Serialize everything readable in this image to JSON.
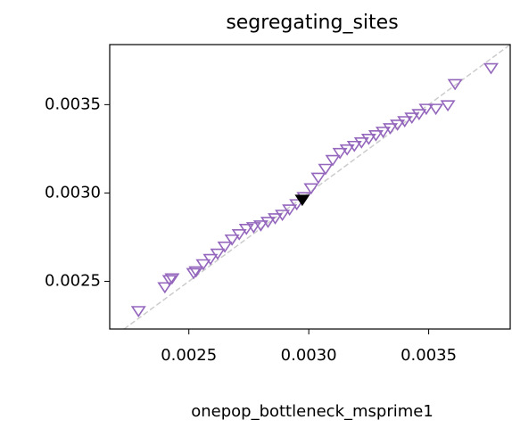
{
  "chart_data": {
    "type": "scatter",
    "title": "segregating_sites",
    "x_label": "onepop_bottleneck_msprime1",
    "xlim": [
      0.00217,
      0.00384
    ],
    "ylim": [
      0.00223,
      0.00384
    ],
    "xticks": [
      0.0025,
      {
        "value": 0.003,
        "label": "0.0030"
      },
      0.0035
    ],
    "yticks": [
      0.0025,
      {
        "value": 0.003,
        "label": "0.0030"
      },
      0.0035
    ],
    "series": [
      {
        "color": "#9467bd",
        "filled": false,
        "x": [
          0.00229,
          0.0024,
          0.00242,
          0.00243,
          0.00252,
          0.00253,
          0.00256,
          0.00259,
          0.00262,
          0.00265,
          0.00268,
          0.00271,
          0.00274,
          0.00277,
          0.0028,
          0.00283,
          0.00286,
          0.00289,
          0.00292,
          0.00295,
          0.00298,
          0.00301,
          0.00304,
          0.00307,
          0.0031,
          0.00313,
          0.00316,
          0.00319,
          0.00322,
          0.00325,
          0.00328,
          0.00331,
          0.00334,
          0.00337,
          0.0034,
          0.00343,
          0.00346,
          0.00349,
          0.00353,
          0.00358,
          0.00361,
          0.00376
        ],
        "values": [
          0.002335,
          0.00247,
          0.00251,
          0.00252,
          0.00255,
          0.00256,
          0.0026,
          0.00263,
          0.00266,
          0.0027,
          0.00274,
          0.00277,
          0.0028,
          0.00281,
          0.00282,
          0.00284,
          0.00286,
          0.00288,
          0.00291,
          0.00294,
          0.00298,
          0.00303,
          0.00309,
          0.00314,
          0.00319,
          0.00323,
          0.00325,
          0.00327,
          0.00329,
          0.00331,
          0.00333,
          0.00335,
          0.00337,
          0.00339,
          0.00341,
          0.00343,
          0.00345,
          0.00348,
          0.00348,
          0.0035,
          0.00362,
          0.00371
        ]
      },
      {
        "color": "#000000",
        "filled": true,
        "x": [
          0.002973
        ],
        "values": [
          0.002965
        ]
      }
    ]
  }
}
